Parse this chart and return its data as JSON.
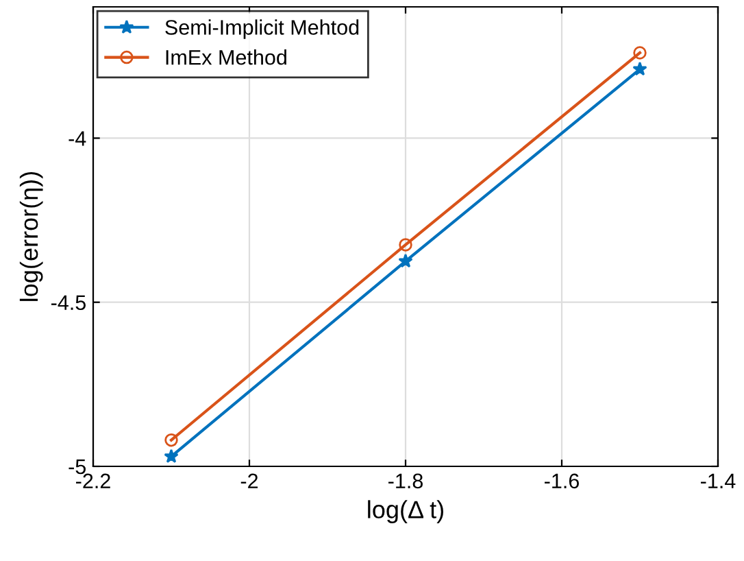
{
  "chart_data": {
    "type": "line",
    "xlabel": "log(Δ t)",
    "ylabel": "log(error(η))",
    "x": [
      -2.1,
      -1.8,
      -1.5
    ],
    "series": [
      {
        "name": "Semi-Implicit Mehtod",
        "color": "#0072bd",
        "marker": "star",
        "values": [
          -4.97,
          -4.375,
          -3.79
        ]
      },
      {
        "name": "ImEx Method",
        "color": "#d95319",
        "marker": "circle",
        "values": [
          -4.92,
          -4.325,
          -3.74
        ]
      }
    ],
    "xlim": [
      -2.2,
      -1.4
    ],
    "xticks": [
      -2.2,
      -2,
      -1.8,
      -1.6,
      -1.4
    ],
    "ylim": [
      -5,
      -3.6
    ],
    "yticks": [
      -5,
      -4.5,
      -4
    ],
    "grid": true,
    "legend": "top left",
    "line_style": "solid"
  }
}
